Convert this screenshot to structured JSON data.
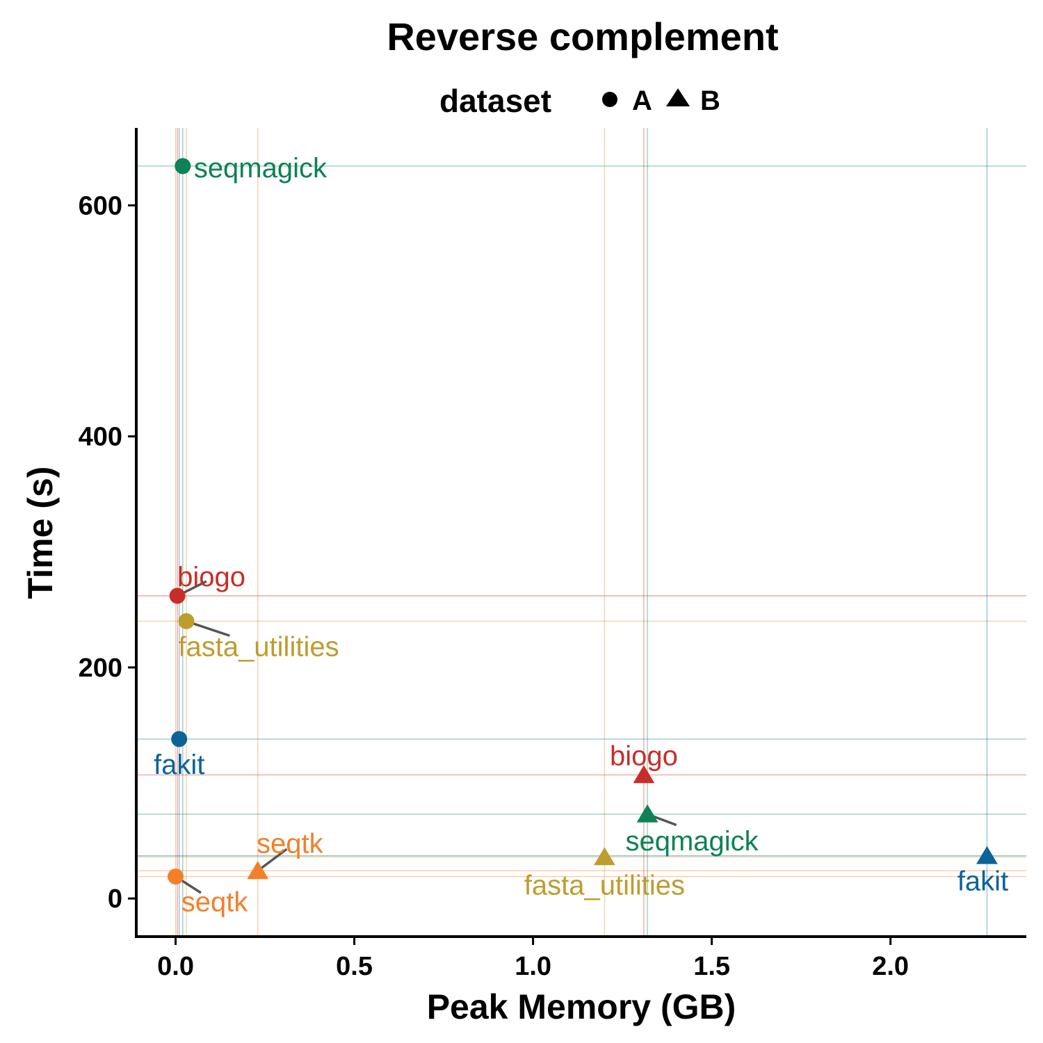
{
  "chart_data": {
    "type": "scatter",
    "title": "Reverse complement",
    "xlabel": "Peak Memory (GB)",
    "ylabel": "Time (s)",
    "xlim": [
      -0.11,
      2.38
    ],
    "ylim": [
      -33,
      667
    ],
    "xticks": [
      0.0,
      0.5,
      1.0,
      1.5,
      2.0
    ],
    "xtick_labels": [
      "0.0",
      "0.5",
      "1.0",
      "1.5",
      "2.0"
    ],
    "yticks": [
      0,
      200,
      400,
      600
    ],
    "ytick_labels": [
      "0",
      "200",
      "400",
      "600"
    ],
    "grid": false,
    "reference_lines": true,
    "legend": {
      "title": "dataset",
      "placement": "top",
      "entries": [
        {
          "label": "A",
          "shape": "circle"
        },
        {
          "label": "B",
          "shape": "triangle"
        }
      ]
    },
    "points": [
      {
        "tool": "seqmagick",
        "dataset": "A",
        "x": 0.02,
        "y": 634,
        "color": "#0E8156"
      },
      {
        "tool": "biogo",
        "dataset": "A",
        "x": 0.005,
        "y": 262,
        "color": "#C72E29"
      },
      {
        "tool": "fasta_utilities",
        "dataset": "A",
        "x": 0.03,
        "y": 240,
        "color": "#BE9C2E"
      },
      {
        "tool": "fakit",
        "dataset": "A",
        "x": 0.01,
        "y": 138,
        "color": "#0B6398"
      },
      {
        "tool": "seqtk",
        "dataset": "A",
        "x": 0.0,
        "y": 19,
        "color": "#F47F2B"
      },
      {
        "tool": "seqtk",
        "dataset": "B",
        "x": 0.23,
        "y": 24,
        "color": "#F47F2B"
      },
      {
        "tool": "fasta_utilities",
        "dataset": "B",
        "x": 1.2,
        "y": 36,
        "color": "#BE9C2E"
      },
      {
        "tool": "biogo",
        "dataset": "B",
        "x": 1.31,
        "y": 107,
        "color": "#C72E29"
      },
      {
        "tool": "seqmagick",
        "dataset": "B",
        "x": 1.32,
        "y": 73,
        "color": "#0E8156"
      },
      {
        "tool": "fakit",
        "dataset": "B",
        "x": 2.27,
        "y": 37,
        "color": "#0B6398"
      }
    ]
  }
}
